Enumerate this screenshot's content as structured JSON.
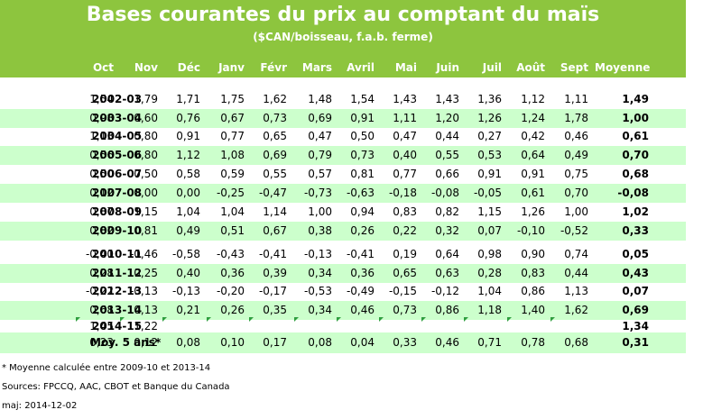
{
  "chart_data": {
    "type": "table",
    "title": "Bases courantes du prix au comptant du maïs",
    "subtitle": "($CAN/boisseau, f.a.b. ferme)",
    "columns": [
      "Oct",
      "Nov",
      "Déc",
      "Janv",
      "Févr",
      "Mars",
      "Avril",
      "Mai",
      "Juin",
      "Juil",
      "Août",
      "Sept",
      "Moyenne"
    ],
    "rows": [
      {
        "label": "2002-03",
        "values": [
          "1,54",
          "1,79",
          "1,71",
          "1,75",
          "1,62",
          "1,48",
          "1,54",
          "1,43",
          "1,43",
          "1,36",
          "1,12",
          "1,11"
        ],
        "average": "1,49"
      },
      {
        "label": "2003-04",
        "values": [
          "0,98",
          "0,60",
          "0,76",
          "0,67",
          "0,73",
          "0,69",
          "0,91",
          "1,11",
          "1,20",
          "1,26",
          "1,24",
          "1,78"
        ],
        "average": "1,00"
      },
      {
        "label": "2004-05",
        "values": [
          "1,13",
          "0,80",
          "0,91",
          "0,77",
          "0,65",
          "0,47",
          "0,50",
          "0,47",
          "0,44",
          "0,27",
          "0,42",
          "0,46"
        ],
        "average": "0,61"
      },
      {
        "label": "2005-06",
        "values": [
          "0,56",
          "0,80",
          "1,12",
          "1,08",
          "0,69",
          "0,79",
          "0,73",
          "0,40",
          "0,55",
          "0,53",
          "0,64",
          "0,49"
        ],
        "average": "0,70"
      },
      {
        "label": "2006-07",
        "values": [
          "0,50",
          "0,50",
          "0,58",
          "0,59",
          "0,55",
          "0,57",
          "0,81",
          "0,77",
          "0,66",
          "0,91",
          "0,91",
          "0,75"
        ],
        "average": "0,68"
      },
      {
        "label": "2007-08",
        "values": [
          "0,12",
          "0,00",
          "0,00",
          "-0,25",
          "-0,47",
          "-0,73",
          "-0,63",
          "-0,18",
          "-0,08",
          "-0,05",
          "0,61",
          "0,70"
        ],
        "average": "-0,08"
      },
      {
        "label": "2008-09",
        "values": [
          "0,87",
          "1,15",
          "1,04",
          "1,04",
          "1,14",
          "1,00",
          "0,94",
          "0,83",
          "0,82",
          "1,15",
          "1,26",
          "1,00"
        ],
        "average": "1,02"
      },
      {
        "label": "2009-10",
        "values": [
          "0,82",
          "0,81",
          "0,49",
          "0,51",
          "0,67",
          "0,38",
          "0,26",
          "0,22",
          "0,32",
          "0,07",
          "-0,10",
          "-0,52"
        ],
        "average": "0,33"
      },
      {
        "label": "2010-11",
        "values": [
          "-0,40",
          "-0,46",
          "-0,58",
          "-0,43",
          "-0,41",
          "-0,13",
          "-0,41",
          "0,19",
          "0,64",
          "0,98",
          "0,90",
          "0,74"
        ],
        "average": "0,05"
      },
      {
        "label": "2011-12",
        "values": [
          "0,28",
          "0,25",
          "0,40",
          "0,36",
          "0,39",
          "0,34",
          "0,36",
          "0,65",
          "0,63",
          "0,28",
          "0,83",
          "0,44"
        ],
        "average": "0,43"
      },
      {
        "label": "2012-13",
        "values": [
          "-0,22",
          "-0,13",
          "-0,13",
          "-0,20",
          "-0,17",
          "-0,53",
          "-0,49",
          "-0,15",
          "-0,12",
          "1,04",
          "0,86",
          "1,13"
        ],
        "average": "0,07"
      },
      {
        "label": "2013-14",
        "values": [
          "0,68",
          "0,13",
          "0,21",
          "0,26",
          "0,35",
          "0,34",
          "0,46",
          "0,73",
          "0,86",
          "1,18",
          "1,40",
          "1,62"
        ],
        "average": "0,69"
      },
      {
        "label": "2014-15",
        "values": [
          "1,45",
          "1,22",
          "",
          "",
          "",
          "",
          "",
          "",
          "",
          "",
          "",
          ""
        ],
        "average": "1,34"
      },
      {
        "label": "Moy. 5 ans*",
        "values": [
          "0,23",
          "0,12",
          "0,08",
          "0,10",
          "0,17",
          "0,08",
          "0,04",
          "0,33",
          "0,46",
          "0,71",
          "0,78",
          "0,68"
        ],
        "average": "0,31"
      }
    ]
  },
  "footer": {
    "note": "* Moyenne calculée entre 2009-10 et 2013-14",
    "sources": "Sources: FPCCQ, AAC, CBOT et Banque du Canada",
    "updated": "maj: 2014-12-02"
  },
  "colors": {
    "header_green": "#8dc53e",
    "row_shade": "#ccffcc",
    "tick_green": "#2e9e3e"
  }
}
